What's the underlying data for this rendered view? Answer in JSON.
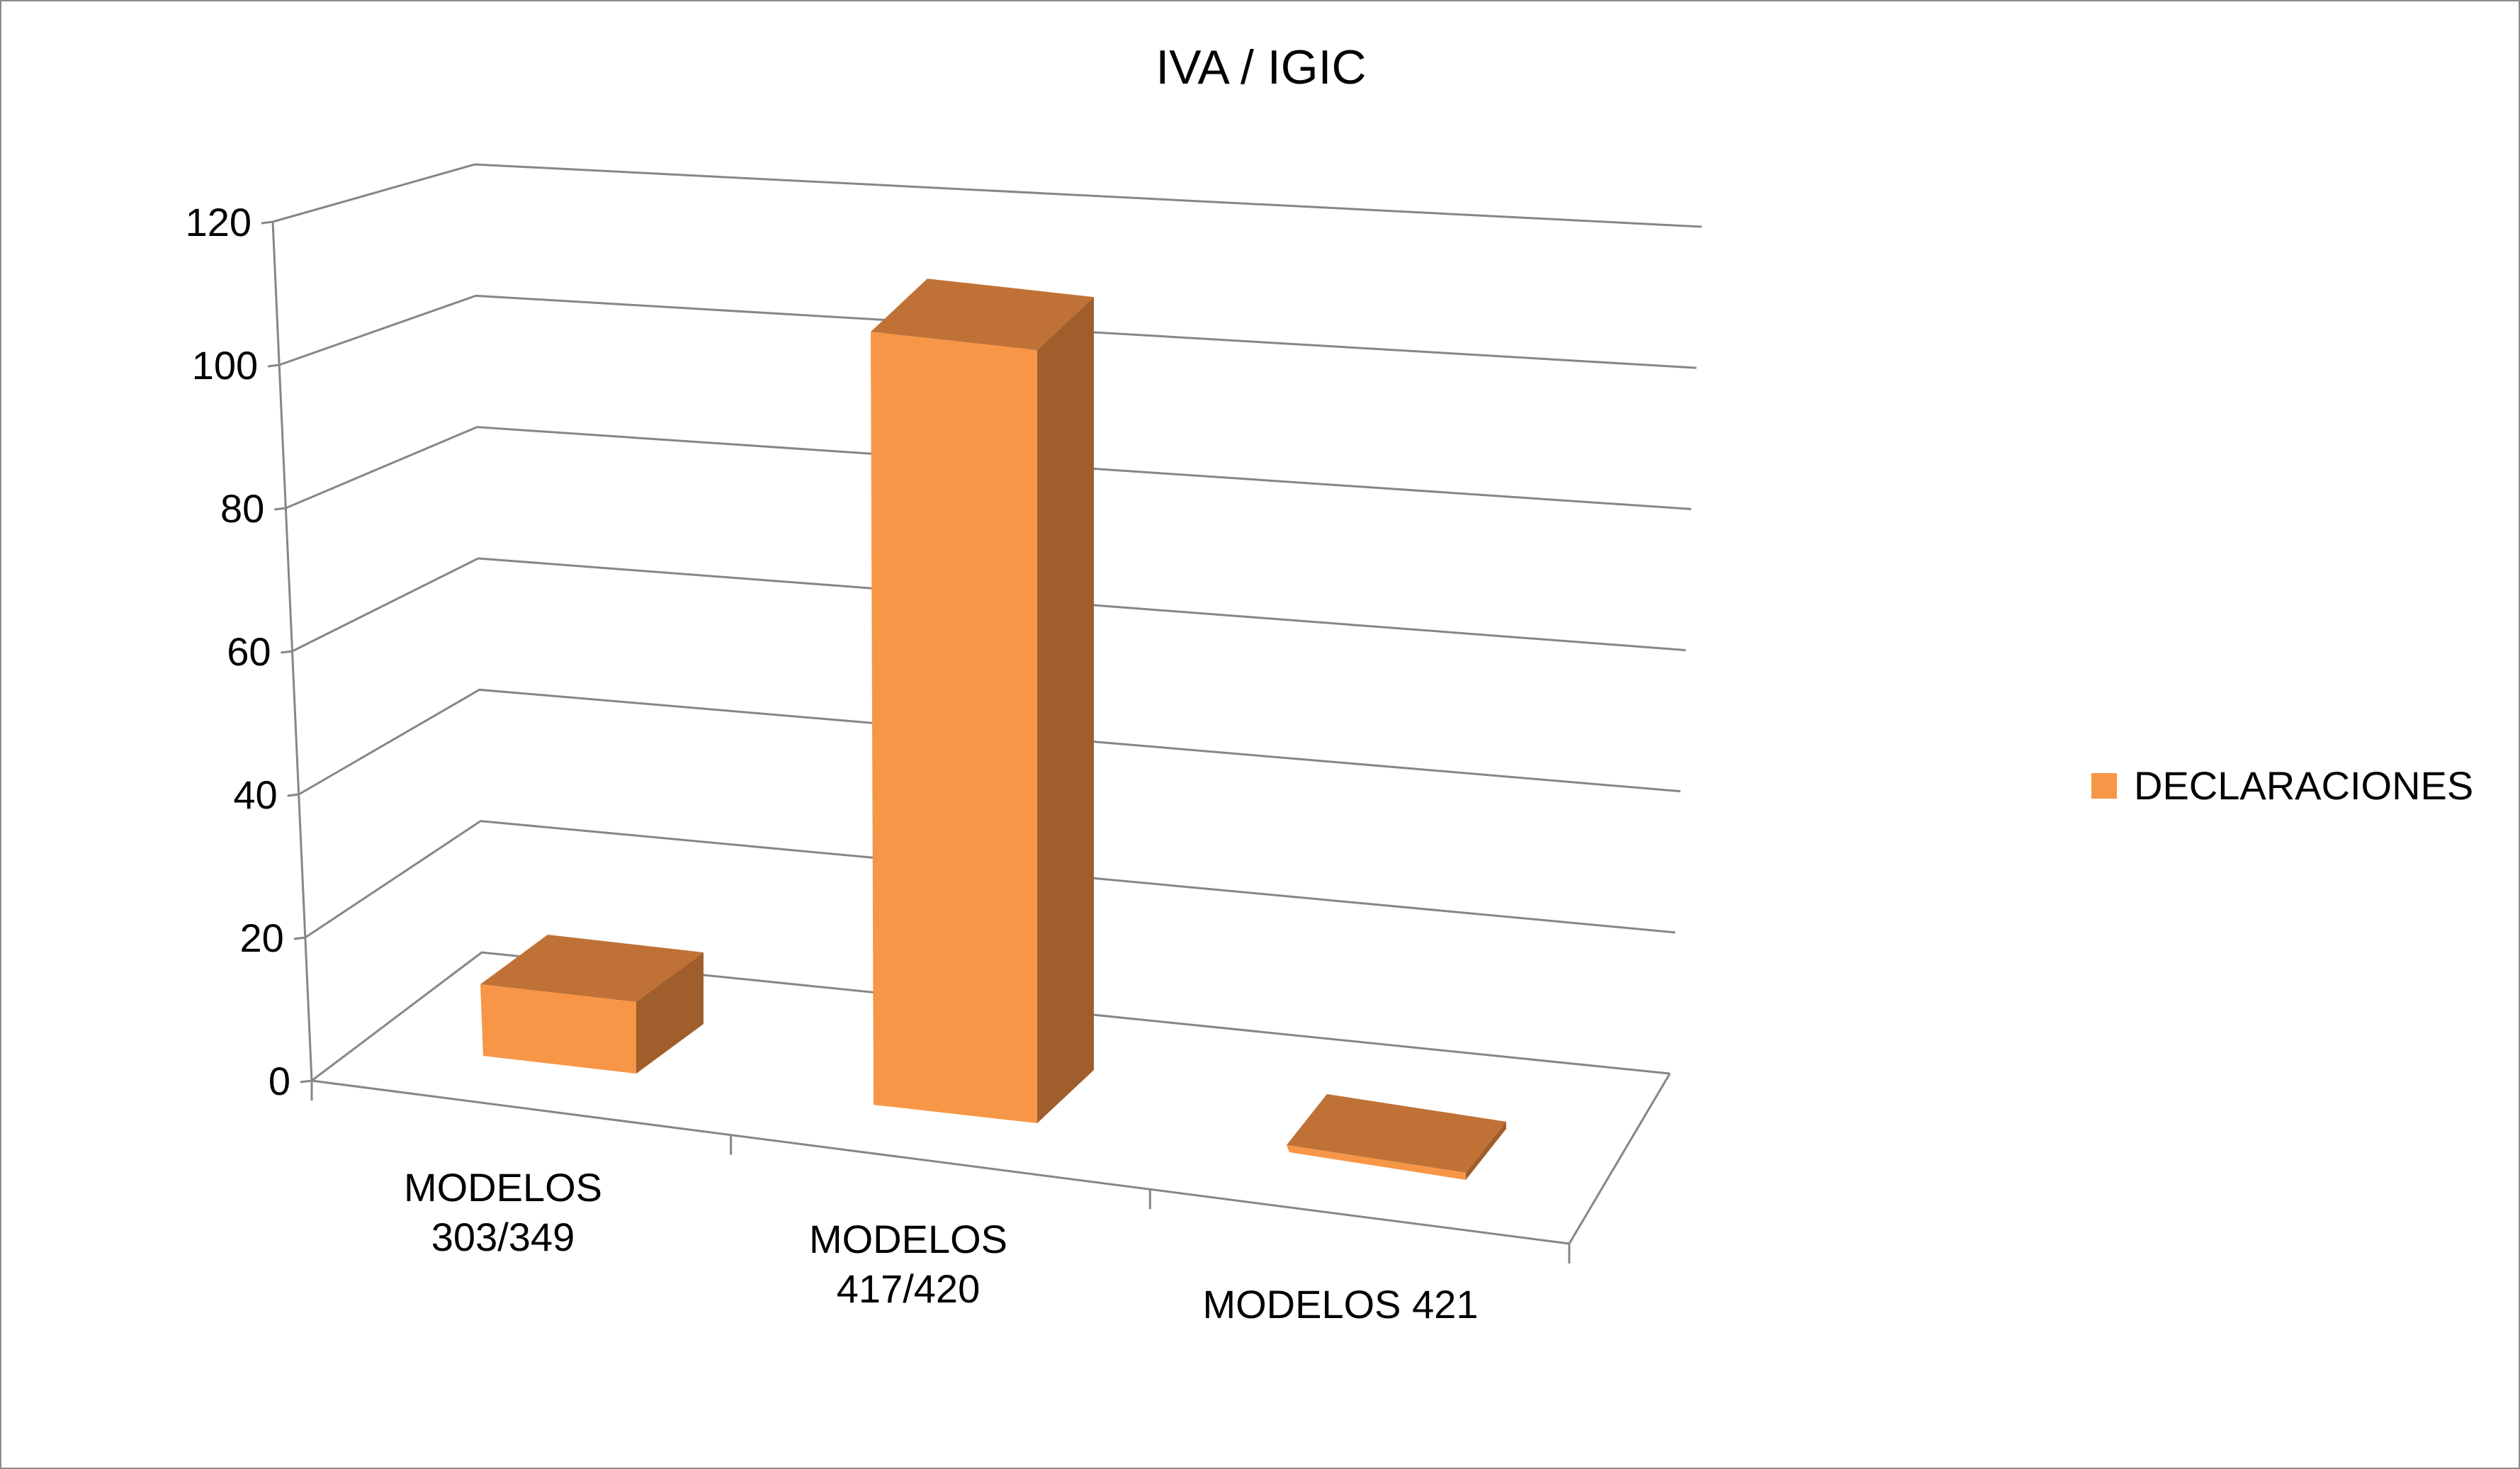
{
  "chart_data": {
    "type": "bar",
    "title": "IVA / IGIC",
    "categories": [
      [
        "MODELOS",
        "303/349"
      ],
      [
        "MODELOS",
        "417/420"
      ],
      [
        "MODELOS 421"
      ]
    ],
    "series": [
      {
        "name": "DECLARACIONES",
        "values": [
          10,
          108,
          1
        ]
      }
    ],
    "ylim": [
      0,
      120
    ],
    "yticks": [
      "0",
      "20",
      "40",
      "60",
      "80",
      "100",
      "120"
    ],
    "grid": true,
    "legend_position": "right",
    "colors": {
      "front": "#F79646",
      "top": "#C07236",
      "side": "#A05E2C",
      "grid": "#868686",
      "axis": "#868686"
    }
  }
}
